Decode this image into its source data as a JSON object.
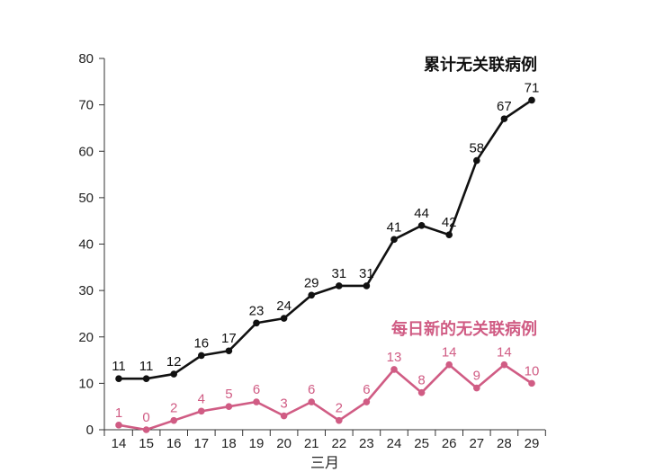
{
  "chart_data": {
    "type": "line",
    "x": [
      "14",
      "15",
      "16",
      "17",
      "18",
      "19",
      "20",
      "21",
      "22",
      "23",
      "24",
      "25",
      "26",
      "27",
      "28",
      "29"
    ],
    "xlabel": "三月",
    "ylabel": "",
    "ylim": [
      0,
      80
    ],
    "yticks": [
      0,
      10,
      20,
      30,
      40,
      50,
      60,
      70,
      80
    ],
    "grid": false,
    "series": [
      {
        "name": "累计无关联病例",
        "color": "#111111",
        "values": [
          11,
          11,
          12,
          16,
          17,
          23,
          24,
          29,
          31,
          31,
          41,
          44,
          42,
          58,
          67,
          71
        ]
      },
      {
        "name": "每日新的无关联病例",
        "color": "#d05c84",
        "values": [
          1,
          0,
          2,
          4,
          5,
          6,
          3,
          6,
          2,
          6,
          13,
          8,
          14,
          9,
          14,
          10
        ]
      }
    ]
  }
}
